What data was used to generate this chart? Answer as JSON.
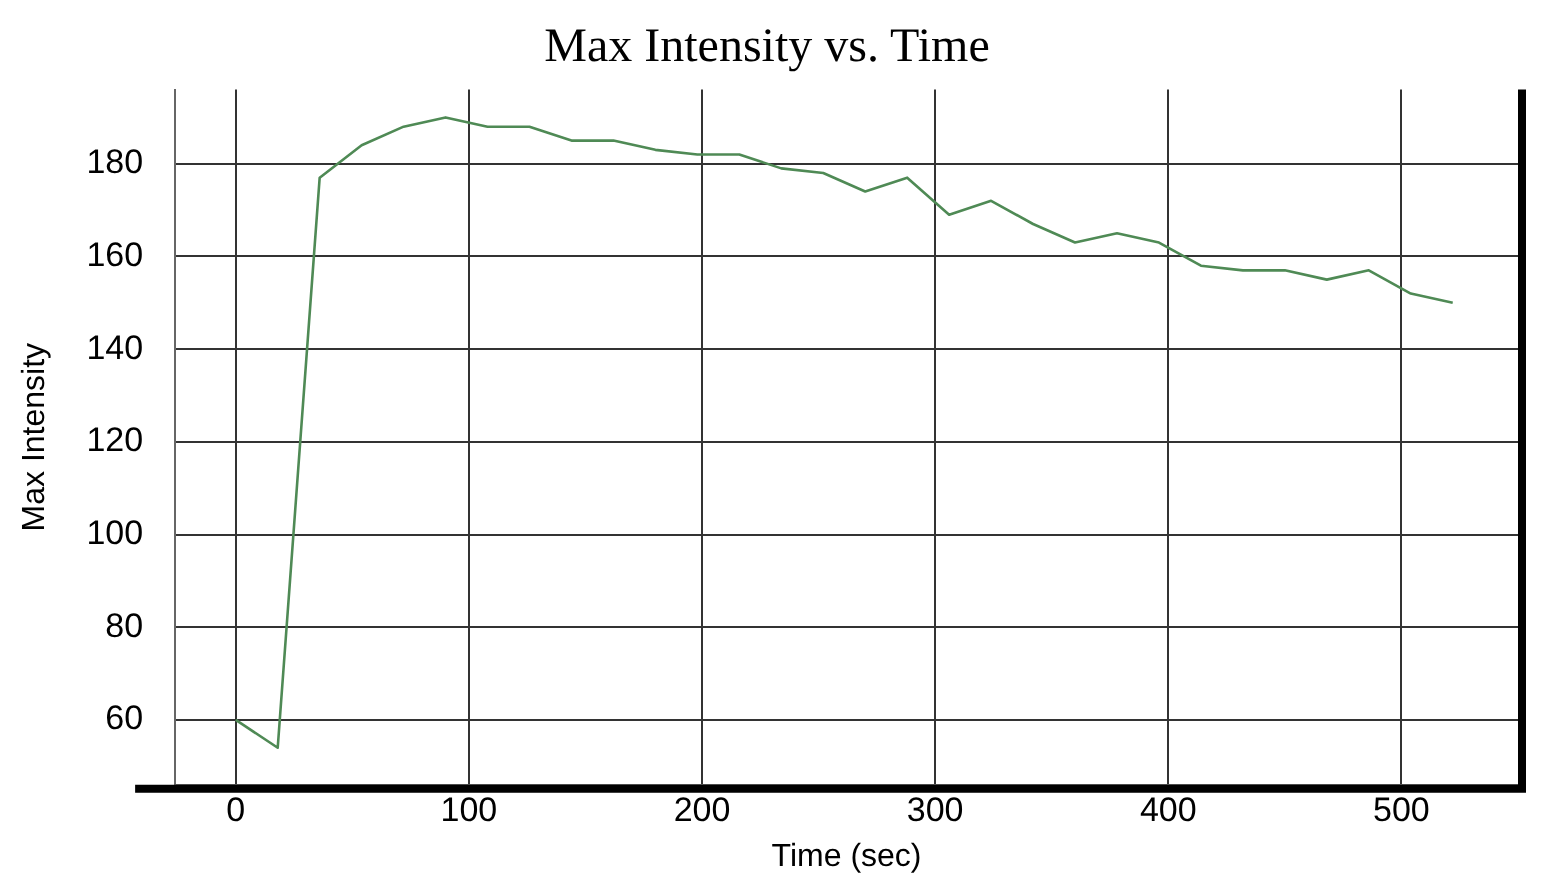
{
  "chart_data": {
    "type": "line",
    "title": "Max Intensity vs. Time",
    "xlabel": "Time (sec)",
    "ylabel": "Max Intensity",
    "x": [
      0,
      18,
      36,
      54,
      72,
      90,
      108,
      126,
      144,
      162,
      180,
      198,
      216,
      234,
      252,
      270,
      288,
      306,
      324,
      342,
      360,
      378,
      396,
      414,
      432,
      450,
      468,
      486,
      504,
      522
    ],
    "series": [
      {
        "color": "#4f8a55",
        "values": [
          60,
          54,
          177,
          184,
          188,
          190,
          188,
          188,
          185,
          185,
          183,
          182,
          182,
          179,
          178,
          174,
          177,
          169,
          172,
          167,
          163,
          165,
          163,
          158,
          157,
          157,
          155,
          157,
          152,
          150
        ]
      }
    ],
    "xlim": [
      -26,
      550
    ],
    "xticks": [
      0,
      100,
      200,
      300,
      400,
      500
    ],
    "ylim": [
      46,
      196
    ],
    "yticks": [
      60,
      80,
      100,
      120,
      140,
      160,
      180
    ],
    "grid": true,
    "legend": false,
    "marker": "none",
    "line_style": "solid"
  }
}
